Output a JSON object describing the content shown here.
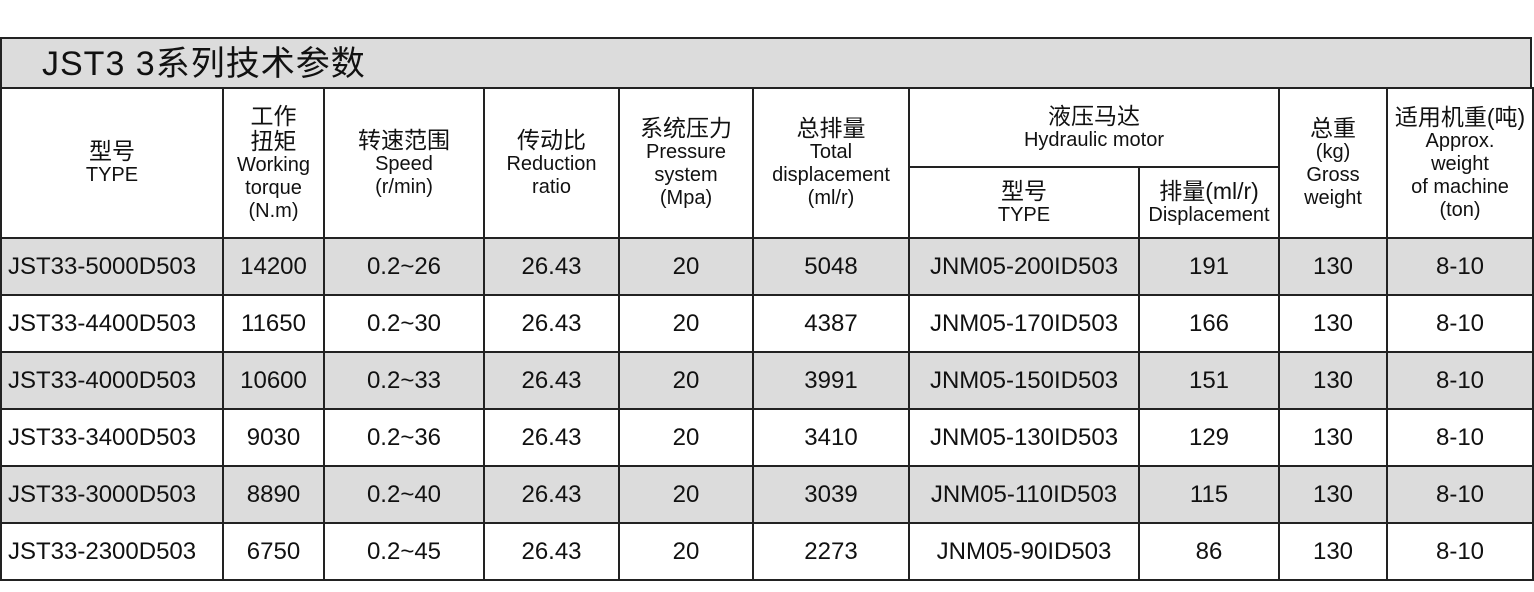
{
  "title": "JST3 3系列技术参数",
  "header": {
    "left": [
      [
        "型号",
        "TYPE"
      ],
      [
        "工作",
        "扭矩",
        "Working",
        "torque",
        "(N.m)"
      ],
      [
        "转速范围",
        "Speed",
        "(r/min)"
      ],
      [
        "传动比",
        "Reduction",
        "ratio"
      ],
      [
        "系统压力",
        "Pressure",
        "system",
        "(Mpa)"
      ],
      [
        "总排量",
        "Total",
        "displacement",
        "(ml/r)"
      ]
    ],
    "motor": {
      "lines": [
        "液压马达",
        "Hydraulic motor"
      ],
      "sub": [
        [
          "型号",
          "TYPE"
        ],
        [
          "排量(ml/r)",
          "Displacement"
        ]
      ]
    },
    "right": [
      [
        "总重",
        "(kg)",
        "Gross",
        "weight"
      ],
      [
        "适用机重(吨)",
        "Approx.",
        "weight",
        "of machine",
        "(ton)"
      ]
    ]
  },
  "rows": [
    [
      "JST33-5000D503",
      "14200",
      "0.2~26",
      "26.43",
      "20",
      "5048",
      "JNM05-200ID503",
      "191",
      "130",
      "8-10"
    ],
    [
      "JST33-4400D503",
      "11650",
      "0.2~30",
      "26.43",
      "20",
      "4387",
      "JNM05-170ID503",
      "166",
      "130",
      "8-10"
    ],
    [
      "JST33-4000D503",
      "10600",
      "0.2~33",
      "26.43",
      "20",
      "3991",
      "JNM05-150ID503",
      "151",
      "130",
      "8-10"
    ],
    [
      "JST33-3400D503",
      "9030",
      "0.2~36",
      "26.43",
      "20",
      "3410",
      "JNM05-130ID503",
      "129",
      "130",
      "8-10"
    ],
    [
      "JST33-3000D503",
      "8890",
      "0.2~40",
      "26.43",
      "20",
      "3039",
      "JNM05-110ID503",
      "115",
      "130",
      "8-10"
    ],
    [
      "JST33-2300D503",
      "6750",
      "0.2~45",
      "26.43",
      "20",
      "2273",
      "JNM05-90ID503",
      "86",
      "130",
      "8-10"
    ]
  ]
}
